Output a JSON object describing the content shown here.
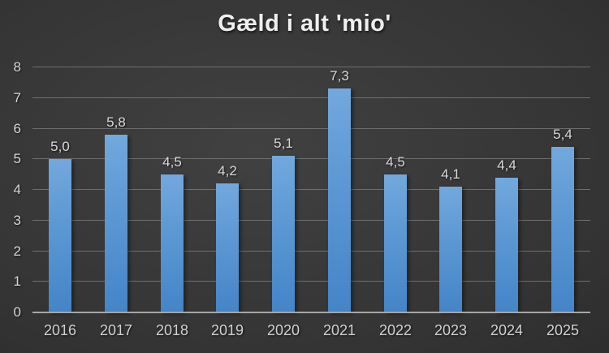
{
  "title": "Gæld i alt 'mio'",
  "chart_data": {
    "type": "bar",
    "title": "Gæld i alt 'mio'",
    "categories": [
      "2016",
      "2017",
      "2018",
      "2019",
      "2020",
      "2021",
      "2022",
      "2023",
      "2024",
      "2025"
    ],
    "values": [
      5.0,
      5.8,
      4.5,
      4.2,
      5.1,
      7.3,
      4.5,
      4.1,
      4.4,
      5.4
    ],
    "value_labels": [
      "5,0",
      "5,8",
      "4,5",
      "4,2",
      "5,1",
      "7,3",
      "4,5",
      "4,1",
      "4,4",
      "5,4"
    ],
    "xlabel": "",
    "ylabel": "",
    "ylim": [
      0,
      8
    ],
    "yticks": [
      0,
      1,
      2,
      3,
      4,
      5,
      6,
      7,
      8
    ],
    "grid": "horizontal",
    "legend": "none",
    "decimal_separator": ",",
    "colors": {
      "bar_top": "#72a8dd",
      "bar_bottom": "#4484c8",
      "background_center": "#414141",
      "background_edge": "#202020",
      "gridline": "#6e6e6e",
      "axis_line": "#a6a6a6",
      "tick_text": "#d6d6d6",
      "value_text": "#d9d9d9",
      "title_text": "#efefef"
    }
  }
}
